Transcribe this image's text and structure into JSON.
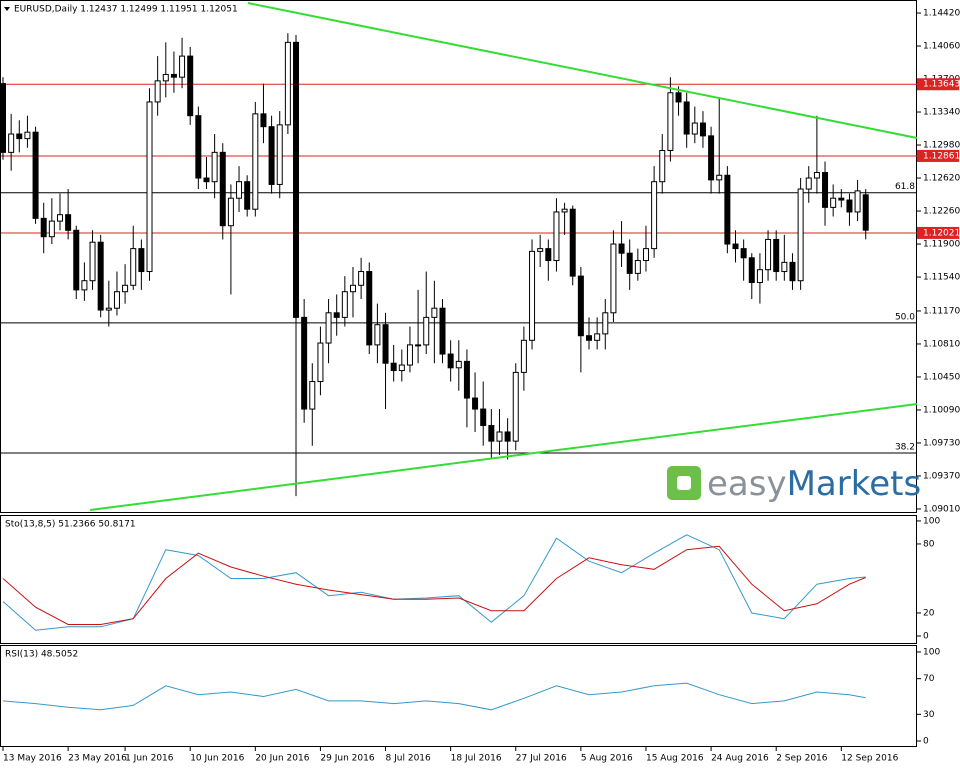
{
  "chart_data": {
    "type": "candlestick",
    "title": "EURUSD,Daily  1.12437 1.12499 1.11951 1.12051",
    "xlim": [
      -0.37,
      112.3
    ],
    "ylim": [
      1.08977,
      1.14562
    ],
    "yticks": [
      {
        "value": 1.1442,
        "label": "1.14420"
      },
      {
        "value": 1.1406,
        "label": "1.14060"
      },
      {
        "value": 1.137,
        "label": "1.13700"
      },
      {
        "value": 1.1334,
        "label": "1.13340"
      },
      {
        "value": 1.1298,
        "label": "1.12980"
      },
      {
        "value": 1.1262,
        "label": "1.12620"
      },
      {
        "value": 1.1226,
        "label": "1.12260"
      },
      {
        "value": 1.119,
        "label": "1.11900"
      },
      {
        "value": 1.1154,
        "label": "1.11540"
      },
      {
        "value": 1.1117,
        "label": "1.11170"
      },
      {
        "value": 1.1081,
        "label": "1.10810"
      },
      {
        "value": 1.1045,
        "label": "1.10450"
      },
      {
        "value": 1.1009,
        "label": "1.10090"
      },
      {
        "value": 1.0973,
        "label": "1.09730"
      },
      {
        "value": 1.0937,
        "label": "1.09370"
      },
      {
        "value": 1.0901,
        "label": "1.09010"
      }
    ],
    "date_ticks": [
      {
        "value": 0,
        "label": "13 May 2016"
      },
      {
        "value": 8,
        "label": "23 May 2016"
      },
      {
        "value": 15,
        "label": "1 Jun 2016"
      },
      {
        "value": 23,
        "label": "10 Jun 2016"
      },
      {
        "value": 31,
        "label": "20 Jun 2016"
      },
      {
        "value": 39,
        "label": "29 Jun 2016"
      },
      {
        "value": 47,
        "label": "8 Jul 2016"
      },
      {
        "value": 55,
        "label": "18 Jul 2016"
      },
      {
        "value": 63,
        "label": "27 Jul 2016"
      },
      {
        "value": 71,
        "label": "5 Aug 2016"
      },
      {
        "value": 79,
        "label": "15 Aug 2016"
      },
      {
        "value": 87,
        "label": "24 Aug 2016"
      },
      {
        "value": 95,
        "label": "2 Sep 2016"
      },
      {
        "value": 103,
        "label": "12 Sep 2016"
      }
    ],
    "ohlc": [
      [
        1.1365,
        1.1372,
        1.1282,
        1.129
      ],
      [
        1.129,
        1.1332,
        1.127,
        1.131
      ],
      [
        1.131,
        1.1325,
        1.129,
        1.1305
      ],
      [
        1.1305,
        1.133,
        1.1295,
        1.1312
      ],
      [
        1.1312,
        1.1318,
        1.1212,
        1.1218
      ],
      [
        1.1218,
        1.1235,
        1.118,
        1.1198
      ],
      [
        1.1198,
        1.124,
        1.119,
        1.1215
      ],
      [
        1.1215,
        1.1245,
        1.1205,
        1.1222
      ],
      [
        1.1222,
        1.125,
        1.1195,
        1.1205
      ],
      [
        1.1205,
        1.121,
        1.113,
        1.114
      ],
      [
        1.114,
        1.117,
        1.1128,
        1.115
      ],
      [
        1.115,
        1.1205,
        1.114,
        1.1192
      ],
      [
        1.1192,
        1.12,
        1.111,
        1.1118
      ],
      [
        1.1118,
        1.115,
        1.11,
        1.112
      ],
      [
        1.112,
        1.116,
        1.1112,
        1.1138
      ],
      [
        1.1138,
        1.1168,
        1.1125,
        1.1145
      ],
      [
        1.1145,
        1.121,
        1.114,
        1.1185
      ],
      [
        1.1185,
        1.1195,
        1.114,
        1.116
      ],
      [
        1.116,
        1.136,
        1.115,
        1.1345
      ],
      [
        1.1345,
        1.1395,
        1.133,
        1.1368
      ],
      [
        1.1368,
        1.141,
        1.135,
        1.1375
      ],
      [
        1.1375,
        1.14,
        1.1355,
        1.1372
      ],
      [
        1.1372,
        1.1415,
        1.136,
        1.1395
      ],
      [
        1.1395,
        1.1405,
        1.132,
        1.133
      ],
      [
        1.133,
        1.134,
        1.125,
        1.1262
      ],
      [
        1.1262,
        1.1285,
        1.125,
        1.1258
      ],
      [
        1.1258,
        1.131,
        1.124,
        1.129
      ],
      [
        1.129,
        1.13,
        1.1195,
        1.121
      ],
      [
        1.121,
        1.1255,
        1.1135,
        1.124
      ],
      [
        1.124,
        1.1275,
        1.1225,
        1.1258
      ],
      [
        1.1258,
        1.1265,
        1.122,
        1.1228
      ],
      [
        1.1228,
        1.1345,
        1.122,
        1.1332
      ],
      [
        1.1332,
        1.1365,
        1.13,
        1.1318
      ],
      [
        1.1318,
        1.133,
        1.1245,
        1.1255
      ],
      [
        1.1255,
        1.1335,
        1.124,
        1.132
      ],
      [
        1.132,
        1.142,
        1.131,
        1.141
      ],
      [
        1.141,
        1.1418,
        1.0915,
        1.111
      ],
      [
        1.111,
        1.113,
        1.0995,
        1.101
      ],
      [
        1.101,
        1.106,
        1.097,
        1.104
      ],
      [
        1.104,
        1.11,
        1.1025,
        1.1082
      ],
      [
        1.1082,
        1.113,
        1.106,
        1.1115
      ],
      [
        1.1115,
        1.1135,
        1.109,
        1.111
      ],
      [
        1.111,
        1.1155,
        1.11,
        1.1138
      ],
      [
        1.1138,
        1.1165,
        1.111,
        1.1145
      ],
      [
        1.1145,
        1.1175,
        1.113,
        1.116
      ],
      [
        1.116,
        1.117,
        1.107,
        1.108
      ],
      [
        1.108,
        1.1125,
        1.106,
        1.1102
      ],
      [
        1.1102,
        1.1115,
        1.101,
        1.106
      ],
      [
        1.106,
        1.108,
        1.104,
        1.1052
      ],
      [
        1.1052,
        1.1075,
        1.104,
        1.1058
      ],
      [
        1.1058,
        1.11,
        1.105,
        1.108
      ],
      [
        1.108,
        1.114,
        1.106,
        1.108
      ],
      [
        1.108,
        1.116,
        1.107,
        1.111
      ],
      [
        1.111,
        1.115,
        1.106,
        1.112
      ],
      [
        1.112,
        1.113,
        1.106,
        1.107
      ],
      [
        1.107,
        1.1085,
        1.104,
        1.1055
      ],
      [
        1.1055,
        1.1085,
        1.103,
        1.1062
      ],
      [
        1.1062,
        1.1075,
        1.099,
        1.1022
      ],
      [
        1.1022,
        1.105,
        1.0985,
        1.101
      ],
      [
        1.101,
        1.104,
        1.097,
        1.0992
      ],
      [
        1.0992,
        1.101,
        1.0955,
        1.0975
      ],
      [
        1.0975,
        1.101,
        1.096,
        1.0985
      ],
      [
        1.0985,
        1.1,
        1.0955,
        1.0975
      ],
      [
        1.0975,
        1.106,
        1.0965,
        1.105
      ],
      [
        1.105,
        1.11,
        1.103,
        1.1085
      ],
      [
        1.1085,
        1.1195,
        1.1075,
        1.1182
      ],
      [
        1.1182,
        1.12,
        1.1165,
        1.1185
      ],
      [
        1.1185,
        1.1195,
        1.115,
        1.1172
      ],
      [
        1.1172,
        1.124,
        1.116,
        1.1225
      ],
      [
        1.1225,
        1.1235,
        1.12,
        1.1228
      ],
      [
        1.1228,
        1.1232,
        1.1145,
        1.1155
      ],
      [
        1.1155,
        1.1165,
        1.105,
        1.109
      ],
      [
        1.109,
        1.111,
        1.1075,
        1.1085
      ],
      [
        1.1085,
        1.111,
        1.1075,
        1.1092
      ],
      [
        1.1092,
        1.113,
        1.1075,
        1.1115
      ],
      [
        1.1115,
        1.1205,
        1.1105,
        1.119
      ],
      [
        1.119,
        1.1215,
        1.1165,
        1.118
      ],
      [
        1.118,
        1.1195,
        1.114,
        1.1158
      ],
      [
        1.1158,
        1.1185,
        1.115,
        1.1172
      ],
      [
        1.1172,
        1.121,
        1.116,
        1.1185
      ],
      [
        1.1185,
        1.1275,
        1.1175,
        1.1258
      ],
      [
        1.1258,
        1.131,
        1.1245,
        1.1292
      ],
      [
        1.1292,
        1.1372,
        1.128,
        1.1355
      ],
      [
        1.1355,
        1.1362,
        1.133,
        1.1345
      ],
      [
        1.1345,
        1.1355,
        1.1295,
        1.131
      ],
      [
        1.131,
        1.134,
        1.13,
        1.1322
      ],
      [
        1.1322,
        1.1335,
        1.1295,
        1.1308
      ],
      [
        1.1308,
        1.1318,
        1.1245,
        1.126
      ],
      [
        1.126,
        1.135,
        1.1245,
        1.1265
      ],
      [
        1.1265,
        1.1275,
        1.118,
        1.119
      ],
      [
        1.119,
        1.1205,
        1.117,
        1.1185
      ],
      [
        1.1185,
        1.1195,
        1.115,
        1.1175
      ],
      [
        1.1175,
        1.118,
        1.113,
        1.1148
      ],
      [
        1.1148,
        1.118,
        1.1125,
        1.1162
      ],
      [
        1.1162,
        1.1205,
        1.115,
        1.1195
      ],
      [
        1.1195,
        1.1205,
        1.115,
        1.116
      ],
      [
        1.116,
        1.12,
        1.115,
        1.117
      ],
      [
        1.117,
        1.118,
        1.114,
        1.115
      ],
      [
        1.115,
        1.1262,
        1.114,
        1.125
      ],
      [
        1.125,
        1.1275,
        1.1235,
        1.1262
      ],
      [
        1.1262,
        1.133,
        1.1245,
        1.1268
      ],
      [
        1.1268,
        1.128,
        1.121,
        1.123
      ],
      [
        1.123,
        1.1255,
        1.122,
        1.124
      ],
      [
        1.124,
        1.125,
        1.123,
        1.1238
      ],
      [
        1.1238,
        1.1245,
        1.121,
        1.1225
      ],
      [
        1.1225,
        1.126,
        1.1215,
        1.1248
      ],
      [
        1.12437,
        1.12499,
        1.11951,
        1.12051
      ]
    ],
    "resistance_lines": [
      {
        "value": 1.13643,
        "label": "1.13643"
      },
      {
        "value": 1.12861,
        "label": "1.12861"
      },
      {
        "value": 1.12021,
        "label": "1.12021"
      }
    ],
    "fib_levels": [
      {
        "value": 1.1246,
        "label": "61.8"
      },
      {
        "value": 1.1104,
        "label": "50.0"
      },
      {
        "value": 1.0962,
        "label": "38.2"
      }
    ],
    "trendlines": [
      {
        "x": [
          30.1,
          112.3
        ],
        "y": [
          1.14529,
          1.13057
        ],
        "color": "#33dd33"
      },
      {
        "x": [
          10.7,
          112.3
        ],
        "y": [
          1.08999,
          1.10155
        ],
        "color": "#33dd33"
      }
    ],
    "logo": {
      "part1": "easy",
      "part2": "Markets"
    },
    "indicators": [
      {
        "title": "Sto(13,8,5) 51.2366 50.8171",
        "ylim": [
          -6.1,
          104.3
        ],
        "yticks": [
          0,
          20,
          80,
          100
        ],
        "x": [
          0,
          4,
          8,
          12,
          16,
          20,
          24,
          28,
          32,
          36,
          40,
          44,
          48,
          52,
          56,
          60,
          64,
          68,
          72,
          76,
          80,
          84,
          88,
          92,
          96,
          100,
          104,
          106
        ],
        "series": [
          {
            "color": "#3399cc",
            "values": [
              30,
              5,
              8,
              8,
              15,
              75,
              70,
              50,
              50,
              55,
              35,
              38,
              32,
              33,
              35,
              12,
              35,
              85,
              65,
              55,
              72,
              88,
              75,
              20,
              15,
              45,
              50,
              51.2366
            ]
          },
          {
            "color": "#cc1111",
            "values": [
              50,
              25,
              10,
              10,
              15,
              50,
              72,
              60,
              52,
              45,
              40,
              36,
              32,
              32,
              33,
              22,
              22,
              50,
              68,
              62,
              58,
              75,
              78,
              45,
              22,
              28,
              45,
              50.8171
            ]
          }
        ]
      },
      {
        "title": "RSI(13) 48.5052",
        "ylim": [
          -5.6,
          106.7
        ],
        "yticks": [
          0,
          30,
          70,
          100
        ],
        "x": [
          0,
          4,
          8,
          12,
          16,
          20,
          24,
          28,
          32,
          36,
          40,
          44,
          48,
          52,
          56,
          60,
          64,
          68,
          72,
          76,
          80,
          84,
          88,
          92,
          96,
          100,
          104,
          106
        ],
        "series": [
          {
            "color": "#3399cc",
            "values": [
              45,
              42,
              38,
              35,
              40,
              62,
              52,
              55,
              50,
              58,
              45,
              45,
              42,
              45,
              42,
              35,
              48,
              62,
              52,
              55,
              62,
              65,
              52,
              42,
              45,
              55,
              52,
              48.5052
            ]
          }
        ]
      }
    ]
  }
}
